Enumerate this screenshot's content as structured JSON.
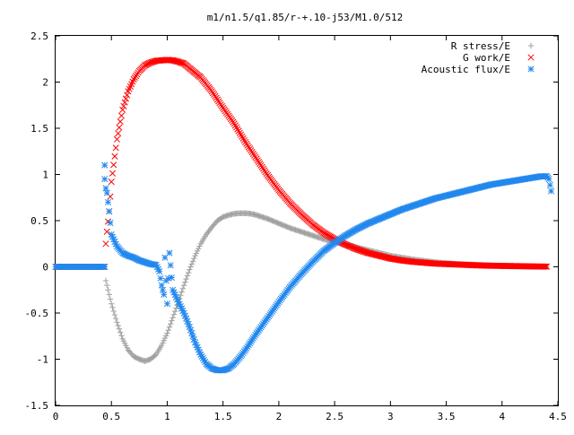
{
  "chart_data": {
    "type": "scatter",
    "title": "m1/n1.5/q1.85/r-+.10-j53/M1.0/512",
    "xlabel": "",
    "ylabel": "",
    "xlim": [
      0,
      4.5
    ],
    "ylim": [
      -1.5,
      2.5
    ],
    "grid": false,
    "legend_placement": "top-right",
    "x_ticks": [
      "0",
      "0.5",
      "1",
      "1.5",
      "2",
      "2.5",
      "3",
      "3.5",
      "4",
      "4.5"
    ],
    "x_tick_values": [
      0,
      0.5,
      1,
      1.5,
      2,
      2.5,
      3,
      3.5,
      4,
      4.5
    ],
    "y_ticks": [
      "-1.5",
      "-1",
      "-0.5",
      "0",
      "0.5",
      "1",
      "1.5",
      "2",
      "2.5"
    ],
    "y_tick_values": [
      -1.5,
      -1,
      -0.5,
      0,
      0.5,
      1,
      1.5,
      2,
      2.5
    ],
    "series": [
      {
        "name": "R stress/E",
        "marker": "plus",
        "color": "#a0a0a0",
        "x": [
          0.0,
          0.1,
          0.2,
          0.3,
          0.4,
          0.44,
          0.45,
          0.5,
          0.55,
          0.6,
          0.65,
          0.7,
          0.75,
          0.8,
          0.85,
          0.9,
          0.95,
          1.0,
          1.05,
          1.1,
          1.15,
          1.2,
          1.25,
          1.3,
          1.35,
          1.4,
          1.45,
          1.5,
          1.55,
          1.6,
          1.65,
          1.7,
          1.75,
          1.8,
          1.9,
          2.0,
          2.1,
          2.2,
          2.3,
          2.4,
          2.5,
          2.6,
          2.7,
          2.8,
          2.9,
          3.0,
          3.1,
          3.2,
          3.3,
          3.4,
          3.5,
          3.6,
          3.7,
          3.8,
          3.9,
          4.0,
          4.1,
          4.2,
          4.3,
          4.4
        ],
        "y": [
          0.0,
          0.0,
          0.0,
          0.0,
          0.0,
          0.0,
          -0.15,
          -0.4,
          -0.6,
          -0.78,
          -0.9,
          -0.97,
          -1.0,
          -1.02,
          -1.0,
          -0.95,
          -0.85,
          -0.72,
          -0.55,
          -0.38,
          -0.2,
          -0.03,
          0.12,
          0.25,
          0.35,
          0.43,
          0.5,
          0.54,
          0.56,
          0.575,
          0.58,
          0.58,
          0.575,
          0.56,
          0.52,
          0.47,
          0.42,
          0.38,
          0.34,
          0.3,
          0.27,
          0.24,
          0.21,
          0.18,
          0.15,
          0.12,
          0.1,
          0.08,
          0.065,
          0.05,
          0.04,
          0.03,
          0.025,
          0.02,
          0.015,
          0.01,
          0.008,
          0.005,
          0.003,
          0.002
        ]
      },
      {
        "name": "G work/E",
        "marker": "cross",
        "color": "#ff0000",
        "x": [
          0.0,
          0.1,
          0.2,
          0.3,
          0.4,
          0.44,
          0.45,
          0.46,
          0.48,
          0.5,
          0.55,
          0.6,
          0.65,
          0.7,
          0.75,
          0.8,
          0.85,
          0.9,
          0.95,
          1.0,
          1.05,
          1.1,
          1.15,
          1.2,
          1.3,
          1.4,
          1.5,
          1.6,
          1.7,
          1.8,
          1.9,
          2.0,
          2.1,
          2.2,
          2.3,
          2.4,
          2.5,
          2.6,
          2.7,
          2.8,
          2.9,
          3.0,
          3.1,
          3.2,
          3.3,
          3.4,
          3.5,
          3.6,
          3.7,
          3.8,
          3.9,
          4.0,
          4.1,
          4.2,
          4.3,
          4.4
        ],
        "y": [
          0.0,
          0.0,
          0.0,
          0.0,
          0.0,
          0.0,
          0.25,
          0.38,
          0.6,
          0.92,
          1.38,
          1.7,
          1.9,
          2.03,
          2.12,
          2.18,
          2.21,
          2.23,
          2.235,
          2.24,
          2.235,
          2.22,
          2.2,
          2.15,
          2.05,
          1.9,
          1.72,
          1.55,
          1.35,
          1.17,
          0.99,
          0.83,
          0.69,
          0.57,
          0.46,
          0.37,
          0.3,
          0.24,
          0.19,
          0.15,
          0.12,
          0.09,
          0.07,
          0.055,
          0.045,
          0.035,
          0.03,
          0.025,
          0.02,
          0.015,
          0.012,
          0.01,
          0.008,
          0.006,
          0.004,
          0.003
        ]
      },
      {
        "name": "Acoustic flux/E",
        "marker": "star",
        "color": "#2288ee",
        "x": [
          0.0,
          0.1,
          0.2,
          0.3,
          0.4,
          0.44,
          0.44,
          0.44,
          0.45,
          0.46,
          0.48,
          0.5,
          0.55,
          0.6,
          0.65,
          0.7,
          0.75,
          0.8,
          0.85,
          0.9,
          0.93,
          0.95,
          0.97,
          0.98,
          1.0,
          1.02,
          1.05,
          1.1,
          1.15,
          1.2,
          1.25,
          1.3,
          1.35,
          1.4,
          1.45,
          1.5,
          1.55,
          1.6,
          1.65,
          1.7,
          1.8,
          1.9,
          2.0,
          2.1,
          2.2,
          2.3,
          2.4,
          2.5,
          2.6,
          2.7,
          2.8,
          2.9,
          3.0,
          3.1,
          3.2,
          3.3,
          3.4,
          3.5,
          3.6,
          3.7,
          3.8,
          3.9,
          4.0,
          4.1,
          4.2,
          4.3,
          4.35,
          4.4,
          4.42,
          4.44
        ],
        "y": [
          0.0,
          0.0,
          0.0,
          0.0,
          0.0,
          0.0,
          1.1,
          0.95,
          0.85,
          0.8,
          0.6,
          0.35,
          0.22,
          0.15,
          0.12,
          0.1,
          0.07,
          0.05,
          0.03,
          0.02,
          -0.05,
          -0.2,
          -0.3,
          0.1,
          -0.4,
          0.15,
          -0.25,
          -0.38,
          -0.5,
          -0.65,
          -0.82,
          -0.95,
          -1.05,
          -1.1,
          -1.12,
          -1.12,
          -1.1,
          -1.05,
          -0.98,
          -0.9,
          -0.72,
          -0.55,
          -0.38,
          -0.22,
          -0.08,
          0.05,
          0.17,
          0.26,
          0.34,
          0.41,
          0.47,
          0.52,
          0.57,
          0.62,
          0.66,
          0.7,
          0.74,
          0.77,
          0.8,
          0.83,
          0.86,
          0.89,
          0.91,
          0.93,
          0.95,
          0.97,
          0.98,
          0.98,
          0.95,
          0.82
        ]
      }
    ]
  }
}
